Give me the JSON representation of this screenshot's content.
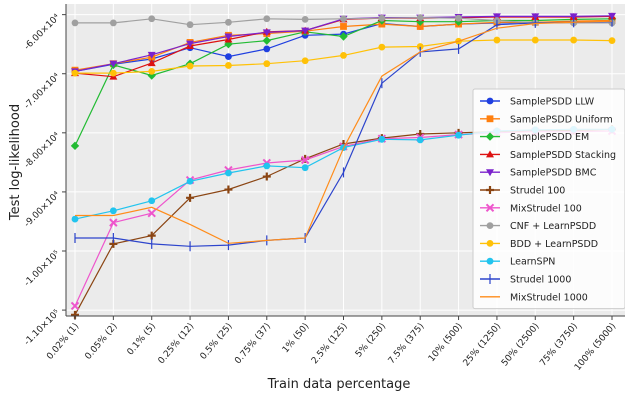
{
  "chart_data": {
    "type": "line",
    "xlabel": "Train data percentage",
    "ylabel": "Test log-likelihood",
    "categories": [
      "0.02% (1)",
      "0.05% (2)",
      "0.1% (5)",
      "0.25% (12)",
      "0.5% (25)",
      "0.75% (37)",
      "1% (50)",
      "2.5% (125)",
      "5% (250)",
      "7.5% (375)",
      "10% (500)",
      "25% (1250)",
      "50% (2500)",
      "75% (3750)",
      "100% (5000)"
    ],
    "yticks": [
      {
        "value": -60000,
        "label": "-6.00×10⁴"
      },
      {
        "value": -70000,
        "label": "-7.00×10⁴"
      },
      {
        "value": -80000,
        "label": "-8.00×10⁴"
      },
      {
        "value": -90000,
        "label": "-9.00×10⁴"
      },
      {
        "value": -100000,
        "label": "-1.00×10⁵"
      },
      {
        "value": -110000,
        "label": "-1.10×10⁵"
      }
    ],
    "ylim": [
      -111000,
      -58200
    ],
    "grid": true,
    "legend_position": "right",
    "series": [
      {
        "name": "SamplePSDD LLW",
        "color": "#1f3fe0",
        "marker": "circle",
        "values": [
          -69600,
          -68400,
          -67500,
          -65600,
          -67100,
          -65800,
          -63500,
          -63300,
          -61500,
          -62000,
          -61600,
          -61400,
          -61300,
          -61200,
          -61000
        ]
      },
      {
        "name": "SamplePSDD Uniform",
        "color": "#ff7f0e",
        "marker": "square",
        "values": [
          -69400,
          -68300,
          -67200,
          -64700,
          -63500,
          -63200,
          -62800,
          -62000,
          -61600,
          -62000,
          -61600,
          -61300,
          -61300,
          -61100,
          -61000
        ]
      },
      {
        "name": "SamplePSDD EM",
        "color": "#22bb33",
        "marker": "diamond",
        "values": [
          -82200,
          -68500,
          -70300,
          -68300,
          -65000,
          -64400,
          -62900,
          -63700,
          -61000,
          -61200,
          -61200,
          -61000,
          -61000,
          -60800,
          -60700
        ]
      },
      {
        "name": "SamplePSDD Stacking",
        "color": "#dd1111",
        "marker": "triangle-up",
        "values": [
          -69900,
          -70500,
          -68200,
          -65300,
          -64200,
          -62900,
          -62700,
          -60800,
          -60600,
          -60600,
          -60500,
          -60400,
          -60400,
          -60400,
          -60300
        ]
      },
      {
        "name": "SamplePSDD BMC",
        "color": "#7b22cc",
        "marker": "triangle-down",
        "values": [
          -69600,
          -68300,
          -66800,
          -64900,
          -63700,
          -63000,
          -62700,
          -60700,
          -60500,
          -60500,
          -60400,
          -60300,
          -60300,
          -60300,
          -60200
        ]
      },
      {
        "name": "Strudel 100",
        "color": "#8b4513",
        "marker": "plus",
        "values": [
          -110800,
          -98800,
          -97400,
          -91000,
          -89600,
          -87400,
          -84400,
          -81900,
          -80900,
          -80200,
          -80000,
          -79800,
          -79600,
          -79600,
          -79400
        ]
      },
      {
        "name": "MixStrudel 100",
        "color": "#ee55cc",
        "marker": "x",
        "values": [
          -109300,
          -95200,
          -93600,
          -88000,
          -86300,
          -85100,
          -84600,
          -82300,
          -81000,
          -80800,
          -80300,
          -80000,
          -79800,
          -79800,
          -79700
        ]
      },
      {
        "name": "CNF + LearnPSDD",
        "color": "#a0a0a0",
        "marker": "circle",
        "values": [
          -61400,
          -61400,
          -60700,
          -61700,
          -61300,
          -60700,
          -60800,
          -60700,
          -60600,
          -60500,
          -60600,
          -61000,
          -61400,
          -61400,
          -61400
        ]
      },
      {
        "name": "BDD + LearnPSDD",
        "color": "#ffc107",
        "marker": "circle",
        "values": [
          -69900,
          -69900,
          -69600,
          -68700,
          -68600,
          -68300,
          -67800,
          -66900,
          -65500,
          -65400,
          -64500,
          -64300,
          -64300,
          -64300,
          -64400
        ]
      },
      {
        "name": "LearnSPN",
        "color": "#22c4ee",
        "marker": "circle",
        "values": [
          -94600,
          -93200,
          -91500,
          -88200,
          -86800,
          -85600,
          -85900,
          -82500,
          -81100,
          -81200,
          -80400,
          -79700,
          -79500,
          -79400,
          -79400
        ]
      },
      {
        "name": "Strudel 1000",
        "color": "#2c44cc",
        "marker": "tick",
        "values": [
          -97800,
          -97800,
          -98800,
          -99200,
          -99000,
          -98200,
          -97800,
          -86700,
          -71600,
          -66300,
          -65800,
          -61700,
          -61400,
          -61300,
          -61200
        ]
      },
      {
        "name": "MixStrudel 1000",
        "color": "#ff8c1a",
        "marker": "none",
        "values": [
          -94000,
          -94000,
          -92600,
          -95500,
          -98700,
          -98200,
          -97800,
          -82600,
          -70400,
          -66300,
          -64500,
          -62300,
          -61500,
          -61300,
          -61100
        ]
      }
    ]
  }
}
